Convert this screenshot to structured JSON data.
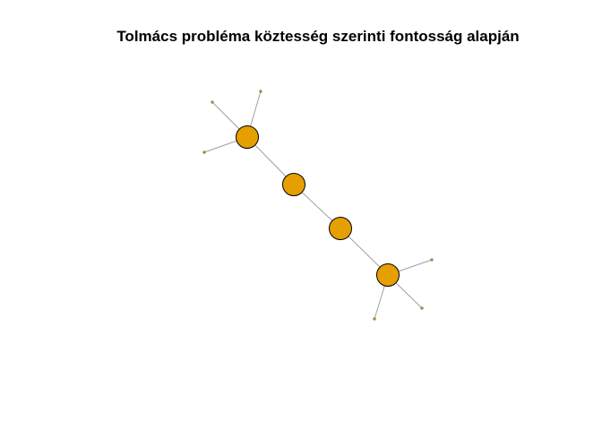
{
  "title": "Tolmács probléma köztesség szerinti fontosság alapján",
  "graph": {
    "node_fill": "#E69F00",
    "node_stroke": "#000000",
    "edge_color": "#a0a0a0",
    "leaf_fill": "#E69F00",
    "nodes": [
      {
        "id": "hub-a",
        "kind": "major"
      },
      {
        "id": "bridge-1",
        "kind": "major"
      },
      {
        "id": "bridge-2",
        "kind": "major"
      },
      {
        "id": "hub-b",
        "kind": "major"
      },
      {
        "id": "leaf-a1",
        "kind": "leaf"
      },
      {
        "id": "leaf-a2",
        "kind": "leaf"
      },
      {
        "id": "leaf-a3",
        "kind": "leaf"
      },
      {
        "id": "leaf-b1",
        "kind": "leaf"
      },
      {
        "id": "leaf-b2",
        "kind": "leaf"
      },
      {
        "id": "leaf-b3",
        "kind": "leaf"
      }
    ],
    "edges": [
      [
        "hub-a",
        "bridge-1"
      ],
      [
        "bridge-1",
        "bridge-2"
      ],
      [
        "bridge-2",
        "hub-b"
      ],
      [
        "hub-a",
        "leaf-a1"
      ],
      [
        "hub-a",
        "leaf-a2"
      ],
      [
        "hub-a",
        "leaf-a3"
      ],
      [
        "hub-b",
        "leaf-b1"
      ],
      [
        "hub-b",
        "leaf-b2"
      ],
      [
        "hub-b",
        "leaf-b3"
      ]
    ]
  }
}
